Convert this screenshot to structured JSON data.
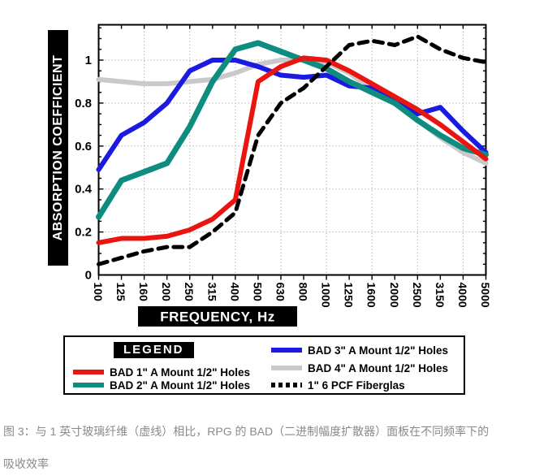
{
  "chart_data": {
    "type": "line",
    "title": "",
    "xlabel": "FREQUENCY, Hz",
    "ylabel": "ABSORPTION COEFFICIENT",
    "categories": [
      "100",
      "125",
      "160",
      "200",
      "250",
      "315",
      "400",
      "500",
      "630",
      "800",
      "1000",
      "1250",
      "1600",
      "2000",
      "2500",
      "3150",
      "4000",
      "5000"
    ],
    "ylim": [
      0,
      1.16
    ],
    "grid": true,
    "legend_position": "bottom",
    "yticks": [
      {
        "v": 0,
        "label": "0"
      },
      {
        "v": 0.2,
        "label": "0.2"
      },
      {
        "v": 0.4,
        "label": "0.4"
      },
      {
        "v": 0.6,
        "label": "0.6"
      },
      {
        "v": 0.8,
        "label": "0.8"
      },
      {
        "v": 1,
        "label": "1"
      }
    ],
    "series": [
      {
        "name": "BAD 4\" A Mount 1/2\" Holes",
        "color": "#c9c9c9",
        "width": 6,
        "values": [
          0.91,
          0.9,
          0.89,
          0.89,
          0.9,
          0.91,
          0.94,
          0.98,
          1.0,
          1.0,
          0.99,
          0.94,
          0.86,
          0.8,
          0.72,
          0.64,
          0.57,
          0.52
        ]
      },
      {
        "name": "BAD 3\" A Mount 1/2\" Holes",
        "color": "#1a1ae0",
        "width": 6,
        "values": [
          0.49,
          0.65,
          0.71,
          0.8,
          0.95,
          1.0,
          1.0,
          0.97,
          0.93,
          0.92,
          0.93,
          0.88,
          0.87,
          0.81,
          0.75,
          0.78,
          0.67,
          0.57
        ]
      },
      {
        "name": "BAD 2\" A Mount 1/2\" Holes",
        "color": "#0e8c7f",
        "width": 7,
        "values": [
          0.27,
          0.44,
          0.48,
          0.52,
          0.69,
          0.9,
          1.05,
          1.08,
          1.04,
          1.0,
          0.96,
          0.9,
          0.85,
          0.8,
          0.72,
          0.65,
          0.59,
          0.56
        ]
      },
      {
        "name": "BAD 1\" A Mount 1/2\" Holes",
        "color": "#ea1410",
        "width": 6,
        "values": [
          0.15,
          0.17,
          0.17,
          0.18,
          0.21,
          0.26,
          0.35,
          0.9,
          0.97,
          1.01,
          1.0,
          0.95,
          0.89,
          0.83,
          0.77,
          0.7,
          0.62,
          0.54
        ]
      },
      {
        "name": "1\" 6 PCF Fiberglas",
        "color": "#000000",
        "width": 5,
        "dash": "11 8",
        "values": [
          0.05,
          0.08,
          0.11,
          0.13,
          0.13,
          0.2,
          0.29,
          0.65,
          0.8,
          0.87,
          0.97,
          1.07,
          1.09,
          1.07,
          1.11,
          1.05,
          1.01,
          0.99
        ]
      }
    ]
  },
  "legend": {
    "title": "LEGEND",
    "entries": [
      {
        "label": "BAD 1\" A Mount 1/2\" Holes",
        "color": "#ea1410",
        "dash": false
      },
      {
        "label": "BAD 2\" A Mount 1/2\" Holes",
        "color": "#0e8c7f",
        "dash": false
      },
      {
        "label": "BAD 3\" A Mount 1/2\" Holes",
        "color": "#1a1ae0",
        "dash": false
      },
      {
        "label": "BAD 4\" A Mount 1/2\" Holes",
        "color": "#c9c9c9",
        "dash": false
      },
      {
        "label": "1\" 6 PCF Fiberglas",
        "color": "#000000",
        "dash": true
      }
    ]
  },
  "axes": {
    "ylabel": "ABSORPTION COEFFICIENT",
    "xlabel": "FREQUENCY, Hz"
  },
  "caption": {
    "line1": "图 3：与 1 英寸玻璃纤维（虚线）相比，RPG 的 BAD（二进制幅度扩散器）面板在不同频率下的",
    "line2": "吸收效率"
  },
  "colors": {
    "grid": "#b5b5b5",
    "axis_box_bg": "#000000",
    "axis_box_text": "#ffffff",
    "caption_text": "#8a8a8a"
  }
}
